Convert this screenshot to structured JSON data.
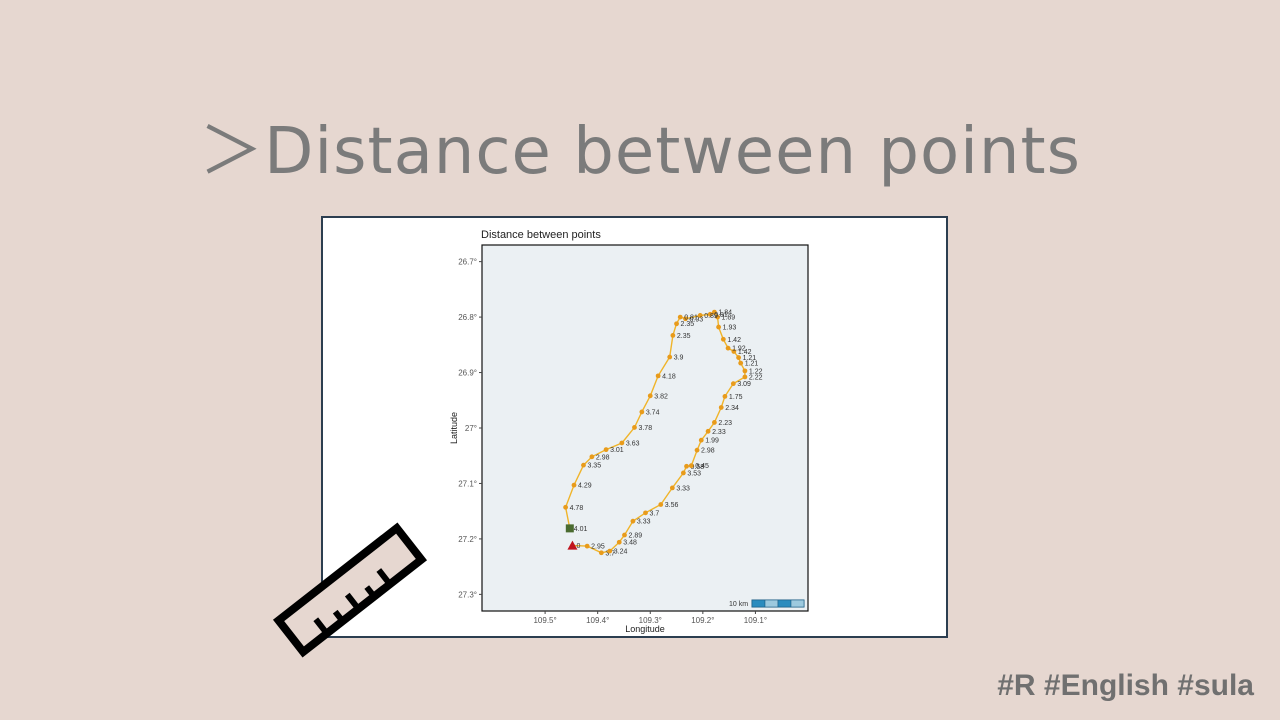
{
  "slide": {
    "title": "＞Distance between points",
    "hashtags": "#R #English #sula"
  },
  "colors": {
    "background": "#e6d7d0",
    "title_text": "#7b7b7b",
    "frame_border": "#2c3e50",
    "plot_panel": "#ebf0f3",
    "track_line": "#f0b429",
    "track_points": "#e89b1b",
    "start_marker": "#4a6b2f",
    "end_marker": "#c0141e",
    "scalebar": "#2b8cbe"
  },
  "icons": {
    "decoration": "ruler-icon"
  },
  "chart_data": {
    "type": "scatter",
    "title": "Distance between points",
    "xlabel": "Longitude",
    "ylabel": "Latitude",
    "x_ticks": [
      {
        "value": -109.5,
        "label": "109.5°"
      },
      {
        "value": -109.4,
        "label": "109.4°"
      },
      {
        "value": -109.3,
        "label": "109.3°"
      },
      {
        "value": -109.2,
        "label": "109.2°"
      },
      {
        "value": -109.1,
        "label": "109.1°"
      }
    ],
    "y_ticks": [
      {
        "value": -26.7,
        "label": "26.7°"
      },
      {
        "value": -26.8,
        "label": "26.8°"
      },
      {
        "value": -26.9,
        "label": "26.9°"
      },
      {
        "value": -27.0,
        "label": "27°"
      },
      {
        "value": -27.1,
        "label": "27.1°"
      },
      {
        "value": -27.2,
        "label": "27.2°"
      },
      {
        "value": -27.3,
        "label": "27.3°"
      }
    ],
    "xlim": [
      -109.62,
      -109.0
    ],
    "ylim": [
      -27.33,
      -26.67
    ],
    "grid": false,
    "scalebar_label": "10 km",
    "start": {
      "lon": -109.453,
      "lat": -27.181
    },
    "end": {
      "lon": -109.448,
      "lat": -27.212
    },
    "series": [
      {
        "points": [
          {
            "lon": -109.448,
            "lat": -27.212,
            "label": "0"
          },
          {
            "lon": -109.42,
            "lat": -27.213,
            "label": "2.95"
          },
          {
            "lon": -109.393,
            "lat": -27.225,
            "label": "3.7"
          },
          {
            "lon": -109.377,
            "lat": -27.222,
            "label": "3.24"
          },
          {
            "lon": -109.359,
            "lat": -27.206,
            "label": "3.48"
          },
          {
            "lon": -109.349,
            "lat": -27.193,
            "label": "2.89"
          },
          {
            "lon": -109.333,
            "lat": -27.168,
            "label": "3.33"
          },
          {
            "lon": -109.309,
            "lat": -27.153,
            "label": "3.7"
          },
          {
            "lon": -109.28,
            "lat": -27.138,
            "label": "3.56"
          },
          {
            "lon": -109.258,
            "lat": -27.108,
            "label": "3.33"
          },
          {
            "lon": -109.237,
            "lat": -27.081,
            "label": "3.53"
          },
          {
            "lon": -109.231,
            "lat": -27.069,
            "label": "0.58"
          },
          {
            "lon": -109.222,
            "lat": -27.068,
            "label": "0.45"
          },
          {
            "lon": -109.211,
            "lat": -27.04,
            "label": "2.98"
          },
          {
            "lon": -109.203,
            "lat": -27.022,
            "label": "1.99"
          },
          {
            "lon": -109.19,
            "lat": -27.006,
            "label": "2.33"
          },
          {
            "lon": -109.178,
            "lat": -26.99,
            "label": "2.23"
          },
          {
            "lon": -109.165,
            "lat": -26.963,
            "label": "2.34"
          },
          {
            "lon": -109.158,
            "lat": -26.943,
            "label": "1.75"
          },
          {
            "lon": -109.142,
            "lat": -26.92,
            "label": "3.09"
          },
          {
            "lon": -109.12,
            "lat": -26.908,
            "label": "2.22"
          },
          {
            "lon": -109.12,
            "lat": -26.897,
            "label": "1.22"
          },
          {
            "lon": -109.128,
            "lat": -26.883,
            "label": "1.21"
          },
          {
            "lon": -109.132,
            "lat": -26.873,
            "label": "1.21"
          },
          {
            "lon": -109.141,
            "lat": -26.862,
            "label": "1.42"
          },
          {
            "lon": -109.152,
            "lat": -26.856,
            "label": "1.92"
          },
          {
            "lon": -109.161,
            "lat": -26.84,
            "label": "1.42"
          },
          {
            "lon": -109.17,
            "lat": -26.818,
            "label": "1.93"
          },
          {
            "lon": -109.172,
            "lat": -26.8,
            "label": "1.89"
          },
          {
            "lon": -109.178,
            "lat": -26.791,
            "label": "1.84"
          },
          {
            "lon": -109.186,
            "lat": -26.795,
            "label": "0.81"
          },
          {
            "lon": -109.205,
            "lat": -26.797,
            "label": "0.89"
          },
          {
            "lon": -109.233,
            "lat": -26.803,
            "label": "0.93"
          },
          {
            "lon": -109.243,
            "lat": -26.8,
            "label": "0.81"
          },
          {
            "lon": -109.25,
            "lat": -26.812,
            "label": "2.35"
          },
          {
            "lon": -109.257,
            "lat": -26.833,
            "label": "2.35"
          },
          {
            "lon": -109.263,
            "lat": -26.872,
            "label": "3.9"
          },
          {
            "lon": -109.285,
            "lat": -26.906,
            "label": "4.18"
          },
          {
            "lon": -109.3,
            "lat": -26.942,
            "label": "3.82"
          },
          {
            "lon": -109.316,
            "lat": -26.971,
            "label": "3.74"
          },
          {
            "lon": -109.33,
            "lat": -26.999,
            "label": "3.78"
          },
          {
            "lon": -109.354,
            "lat": -27.027,
            "label": "3.63"
          },
          {
            "lon": -109.384,
            "lat": -27.039,
            "label": "3.01"
          },
          {
            "lon": -109.411,
            "lat": -27.052,
            "label": "2.98"
          },
          {
            "lon": -109.427,
            "lat": -27.067,
            "label": "3.35"
          },
          {
            "lon": -109.445,
            "lat": -27.103,
            "label": "4.29"
          },
          {
            "lon": -109.461,
            "lat": -27.143,
            "label": "4.78"
          },
          {
            "lon": -109.453,
            "lat": -27.181,
            "label": "4.01"
          }
        ]
      }
    ]
  }
}
